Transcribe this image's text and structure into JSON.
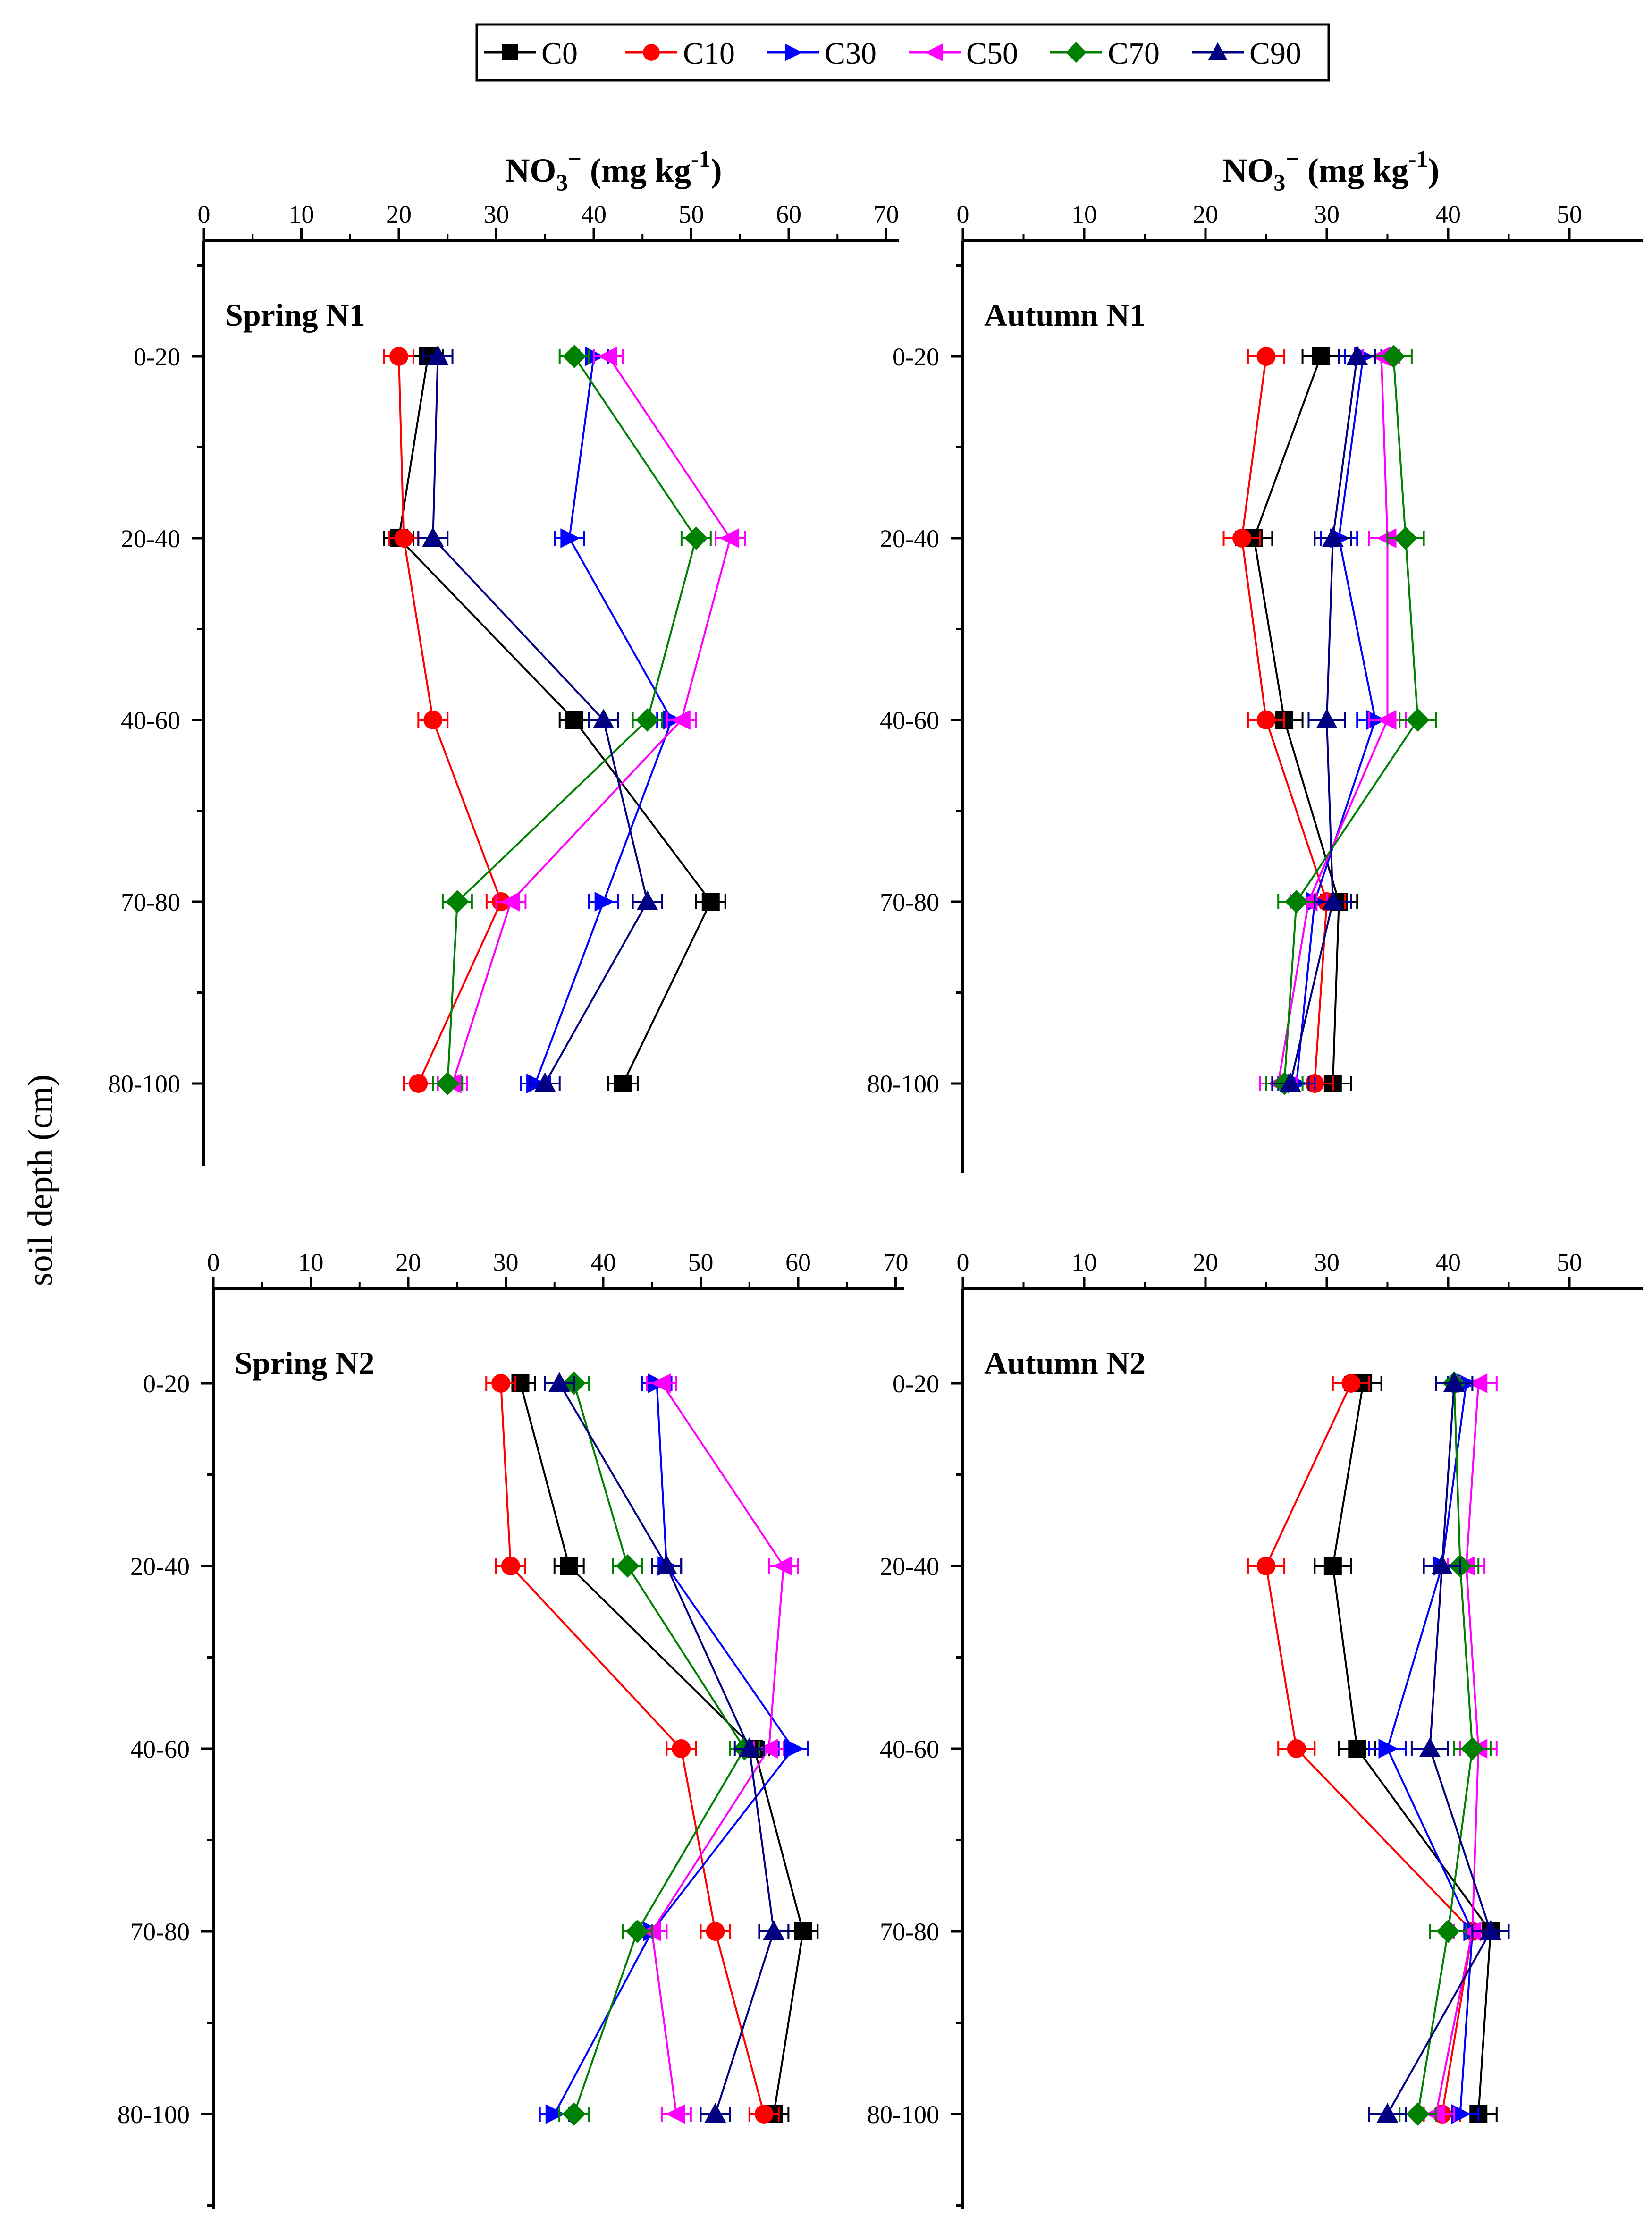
{
  "figure": {
    "y_axis_label": "soil depth (cm)"
  },
  "legend": {
    "entries": [
      {
        "name": "C0",
        "color": "#000000",
        "marker": "square"
      },
      {
        "name": "C10",
        "color": "#ff0000",
        "marker": "circle"
      },
      {
        "name": "C30",
        "color": "#0000ff",
        "marker": "triangle-right"
      },
      {
        "name": "C50",
        "color": "#ff00ff",
        "marker": "triangle-left"
      },
      {
        "name": "C70",
        "color": "#008000",
        "marker": "diamond"
      },
      {
        "name": "C90",
        "color": "#000080",
        "marker": "triangle-up"
      }
    ]
  },
  "chart_data": [
    {
      "type": "line",
      "title": "Spring N1",
      "xlabel_main": "NO",
      "xlabel_sub": "3",
      "xlabel_sup": "−",
      "xlabel_unit": " (mg kg",
      "xlabel_unit_sup": "-1",
      "xlabel_close": ")",
      "show_xlabel": true,
      "xlim": [
        0,
        70
      ],
      "xticks": [
        0,
        10,
        20,
        30,
        40,
        50,
        60,
        70
      ],
      "categories": [
        "0-20",
        "20-40",
        "40-60",
        "70-80",
        "80-100"
      ],
      "series": [
        {
          "name": "C0",
          "values": [
            23,
            20,
            38,
            52,
            43
          ],
          "errors": [
            1.5,
            1.5,
            1.5,
            1.5,
            1.5
          ]
        },
        {
          "name": "C10",
          "values": [
            20,
            20.5,
            23.5,
            30.5,
            22
          ],
          "errors": [
            1.5,
            1.5,
            1.5,
            1.5,
            1.5
          ]
        },
        {
          "name": "C30",
          "values": [
            40,
            37.5,
            48,
            41,
            34
          ],
          "errors": [
            1.5,
            1.5,
            1.5,
            1.5,
            1.5
          ]
        },
        {
          "name": "C50",
          "values": [
            41.5,
            54,
            49,
            31.5,
            25.5
          ],
          "errors": [
            1.5,
            1.5,
            1.5,
            1.5,
            1.5
          ]
        },
        {
          "name": "C70",
          "values": [
            38,
            50.5,
            45.5,
            26,
            25
          ],
          "errors": [
            1.5,
            1.5,
            1.5,
            1.5,
            1.5
          ]
        },
        {
          "name": "C90",
          "values": [
            24,
            23.5,
            41,
            45.5,
            35
          ],
          "errors": [
            1.5,
            1.5,
            1.5,
            1.5,
            1.5
          ]
        }
      ]
    },
    {
      "type": "line",
      "title": "Autumn N1",
      "xlabel_main": "NO",
      "xlabel_sub": "3",
      "xlabel_sup": "−",
      "xlabel_unit": " (mg kg",
      "xlabel_unit_sup": "-1",
      "xlabel_close": ")",
      "show_xlabel": true,
      "xlim": [
        0,
        55
      ],
      "xticks": [
        0,
        10,
        20,
        30,
        40,
        50
      ],
      "categories": [
        "0-20",
        "20-40",
        "40-60",
        "70-80",
        "80-100"
      ],
      "series": [
        {
          "name": "C0",
          "values": [
            29.5,
            24,
            26.5,
            31,
            30.5
          ],
          "errors": [
            1.5,
            1.5,
            1.5,
            1.5,
            1.5
          ]
        },
        {
          "name": "C10",
          "values": [
            25,
            23,
            25,
            30,
            29
          ],
          "errors": [
            1.5,
            1.5,
            1.5,
            1.5,
            1.5
          ]
        },
        {
          "name": "C30",
          "values": [
            33,
            31,
            34,
            29,
            27.5
          ],
          "errors": [
            1.5,
            1.5,
            1.5,
            1.5,
            1.5
          ]
        },
        {
          "name": "C50",
          "values": [
            34.5,
            35,
            35,
            28.5,
            26
          ],
          "errors": [
            1.5,
            1.5,
            1.5,
            1.5,
            1.5
          ]
        },
        {
          "name": "C70",
          "values": [
            35.5,
            36.5,
            37.5,
            27.5,
            26.5
          ],
          "errors": [
            1.5,
            1.5,
            1.5,
            1.5,
            1.5
          ]
        },
        {
          "name": "C90",
          "values": [
            32.5,
            30.5,
            30,
            30.5,
            27
          ],
          "errors": [
            1.5,
            1.5,
            1.5,
            1.5,
            1.5
          ]
        }
      ]
    },
    {
      "type": "line",
      "title": "Spring N2",
      "show_xlabel": false,
      "xlim": [
        0,
        70
      ],
      "xticks": [
        0,
        10,
        20,
        30,
        40,
        50,
        60,
        70
      ],
      "categories": [
        "0-20",
        "20-40",
        "40-60",
        "70-80",
        "80-100"
      ],
      "series": [
        {
          "name": "C0",
          "values": [
            31.5,
            36.5,
            55.5,
            60.5,
            57.5
          ],
          "errors": [
            1.5,
            1.5,
            1.5,
            1.5,
            1.5
          ]
        },
        {
          "name": "C10",
          "values": [
            29.5,
            30.5,
            48,
            51.5,
            56.5
          ],
          "errors": [
            1.5,
            1.5,
            1.5,
            1.5,
            1.5
          ]
        },
        {
          "name": "C30",
          "values": [
            45.5,
            46.5,
            59.5,
            45,
            35
          ],
          "errors": [
            1.5,
            1.5,
            1.5,
            1.5,
            1.5
          ]
        },
        {
          "name": "C50",
          "values": [
            46,
            58.5,
            57,
            45,
            47.5
          ],
          "errors": [
            1.5,
            1.5,
            1.5,
            1.5,
            1.5
          ]
        },
        {
          "name": "C70",
          "values": [
            37,
            42.5,
            54.5,
            43.5,
            37
          ],
          "errors": [
            1.5,
            1.5,
            1.5,
            1.5,
            1.5
          ]
        },
        {
          "name": "C90",
          "values": [
            35.5,
            46.5,
            55,
            57.5,
            51.5
          ],
          "errors": [
            1.5,
            1.5,
            1.5,
            1.5,
            1.5
          ]
        }
      ]
    },
    {
      "type": "line",
      "title": "Autumn N2",
      "show_xlabel": false,
      "xlim": [
        0,
        55
      ],
      "xticks": [
        0,
        10,
        20,
        30,
        40,
        50
      ],
      "categories": [
        "0-20",
        "20-40",
        "40-60",
        "70-80",
        "80-100"
      ],
      "series": [
        {
          "name": "C0",
          "values": [
            33,
            30.5,
            32.5,
            43.5,
            42.5
          ],
          "errors": [
            1.5,
            1.5,
            1.5,
            1.5,
            1.5
          ]
        },
        {
          "name": "C10",
          "values": [
            32,
            25,
            27.5,
            42,
            39.5
          ],
          "errors": [
            1.5,
            1.5,
            1.5,
            1.5,
            1.5
          ]
        },
        {
          "name": "C30",
          "values": [
            41.5,
            39.5,
            35,
            42,
            41
          ],
          "errors": [
            1.5,
            1.5,
            1.5,
            1.5,
            1.5
          ]
        },
        {
          "name": "C50",
          "values": [
            42.5,
            41.5,
            42.5,
            42,
            39
          ],
          "errors": [
            1.5,
            1.5,
            1.5,
            1.5,
            1.5
          ]
        },
        {
          "name": "C70",
          "values": [
            40.5,
            41,
            42,
            40,
            37.5
          ],
          "errors": [
            1.5,
            1.5,
            1.5,
            1.5,
            1.5
          ]
        },
        {
          "name": "C90",
          "values": [
            40.5,
            39.5,
            38.5,
            43.5,
            35
          ],
          "errors": [
            1.5,
            1.5,
            1.5,
            1.5,
            1.5
          ]
        }
      ]
    }
  ]
}
